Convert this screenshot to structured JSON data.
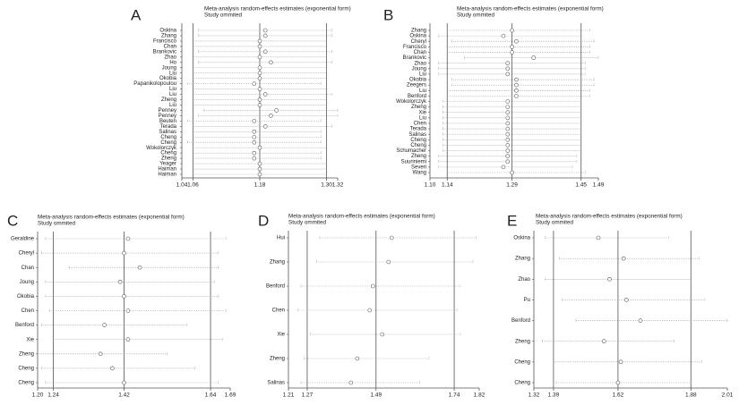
{
  "chart_data": [
    {
      "type": "forest",
      "panel_label": "A",
      "title": "Meta-analysis random-effects estimates (exponential form)",
      "subtitle": "Study ommited",
      "categories": [
        "Oskina",
        "Zhang",
        "Francisco",
        "Chan",
        "Brankovic",
        "Zhao",
        "Ho",
        "Joung",
        "Liu",
        "Okobia",
        "Papanikolopoulou",
        "Liu",
        "Liu",
        "Zheng",
        "Liu",
        "Penney",
        "Penney",
        "Beuten",
        "Terada",
        "Salinas",
        "Cheng",
        "Cheng",
        "Wokolorczyk",
        "Cheng",
        "Zheng",
        "Yeager",
        "Haiman",
        "Haiman"
      ],
      "estimates": [
        1.19,
        1.19,
        1.18,
        1.18,
        1.19,
        1.18,
        1.2,
        1.18,
        1.18,
        1.18,
        1.17,
        1.18,
        1.19,
        1.18,
        1.18,
        1.21,
        1.2,
        1.17,
        1.19,
        1.17,
        1.17,
        1.17,
        1.18,
        1.17,
        1.17,
        1.18,
        1.18,
        1.18
      ],
      "lower": [
        1.07,
        1.07,
        1.06,
        1.06,
        1.07,
        1.06,
        1.07,
        1.06,
        1.06,
        1.06,
        1.05,
        1.06,
        1.06,
        1.06,
        1.06,
        1.08,
        1.07,
        1.05,
        1.06,
        1.06,
        1.06,
        1.05,
        1.06,
        1.06,
        1.06,
        1.06,
        1.06,
        1.06
      ],
      "upper": [
        1.31,
        1.31,
        1.3,
        1.3,
        1.31,
        1.3,
        1.31,
        1.3,
        1.3,
        1.3,
        1.29,
        1.3,
        1.31,
        1.3,
        1.3,
        1.32,
        1.32,
        1.29,
        1.31,
        1.29,
        1.29,
        1.29,
        1.3,
        1.29,
        1.29,
        1.3,
        1.3,
        1.3
      ],
      "xlim": [
        1.04,
        1.32
      ],
      "xticks": [
        1.04,
        1.06,
        1.18,
        {
          "value": 1.3,
          "label": "1.30"
        },
        1.32
      ]
    },
    {
      "type": "forest",
      "panel_label": "B",
      "title": "Meta-analysis random-effects estimates (exponential form)",
      "subtitle": "Study ommited",
      "categories": [
        "Zhang",
        "Oskina",
        "Cheryl",
        "Francisco",
        "Chan",
        "Brankovic",
        "Zhao",
        "Joung",
        "Liu",
        "Okobia",
        "Zeegers",
        "Liu",
        "Benford",
        "Wokolorczyk",
        "Zheng",
        "Xie",
        "Liu",
        "Chen",
        "Terada",
        "Salinas",
        "Cheng",
        "Cheng",
        "Schumacher",
        "Zheng",
        "Suuriniemi",
        "Severi",
        "Wang"
      ],
      "estimates": [
        1.29,
        1.27,
        1.3,
        1.29,
        1.29,
        1.34,
        1.28,
        1.28,
        1.28,
        1.3,
        1.3,
        1.3,
        1.3,
        1.28,
        1.28,
        1.28,
        1.28,
        1.28,
        1.28,
        1.28,
        1.28,
        1.28,
        1.28,
        1.28,
        1.28,
        1.27,
        1.29
      ],
      "lower": [
        1.14,
        1.12,
        1.15,
        1.14,
        1.14,
        1.18,
        1.12,
        1.12,
        1.12,
        1.15,
        1.15,
        1.14,
        1.14,
        1.13,
        1.13,
        1.13,
        1.13,
        1.13,
        1.13,
        1.13,
        1.13,
        1.13,
        1.13,
        1.12,
        1.12,
        1.12,
        1.14
      ],
      "upper": [
        1.47,
        1.45,
        1.48,
        1.47,
        1.47,
        1.49,
        1.46,
        1.46,
        1.46,
        1.48,
        1.48,
        1.47,
        1.47,
        1.45,
        1.45,
        1.45,
        1.45,
        1.45,
        1.45,
        1.45,
        1.45,
        1.45,
        1.45,
        1.44,
        1.44,
        1.43,
        1.46
      ],
      "xlim": [
        1.1,
        1.49
      ],
      "xticks": [
        {
          "value": 1.1,
          "label": "1.10"
        },
        1.14,
        1.29,
        1.45,
        1.49
      ]
    },
    {
      "type": "forest",
      "panel_label": "C",
      "title": "Meta-analysis random-effects estimates (exponential form)",
      "subtitle": "Study ommited",
      "categories": [
        "Geraldine",
        "Cheryl",
        "Chan",
        "Joung",
        "Okobia",
        "Chen",
        "Benford",
        "Xie",
        "Zheng",
        "Cheng",
        "Cheng"
      ],
      "estimates": [
        1.43,
        1.42,
        1.46,
        1.41,
        1.42,
        1.43,
        1.37,
        1.43,
        1.36,
        1.39,
        1.42
      ],
      "lower": [
        1.22,
        1.21,
        1.28,
        1.22,
        1.22,
        1.23,
        1.21,
        1.24,
        1.2,
        1.21,
        1.22
      ],
      "upper": [
        1.68,
        1.66,
        1.66,
        1.65,
        1.66,
        1.68,
        1.58,
        1.67,
        1.53,
        1.6,
        1.66
      ],
      "xlim": [
        1.2,
        1.69
      ],
      "xticks": [
        {
          "value": 1.2,
          "label": "1.20"
        },
        1.24,
        1.42,
        1.64,
        1.69
      ]
    },
    {
      "type": "forest",
      "panel_label": "D",
      "title": "Meta-analysis random-effects estimates (exponential form)",
      "subtitle": "Study ommited",
      "categories": [
        "Hui",
        "Zhang",
        "Benford",
        "Chen",
        "Xie",
        "Zheng",
        "Salinas"
      ],
      "estimates": [
        1.54,
        1.53,
        1.48,
        1.47,
        1.51,
        1.43,
        1.41
      ],
      "lower": [
        1.31,
        1.3,
        1.25,
        1.24,
        1.28,
        1.26,
        1.25
      ],
      "upper": [
        1.81,
        1.8,
        1.76,
        1.75,
        1.76,
        1.66,
        1.63
      ],
      "xlim": [
        1.21,
        1.82
      ],
      "xticks": [
        1.21,
        1.27,
        1.49,
        1.74,
        1.82
      ]
    },
    {
      "type": "forest",
      "panel_label": "E",
      "title": "Meta-analysis random-effects estimates (exponential form)",
      "subtitle": "Study ommited",
      "categories": [
        "Oskina",
        "Zhang",
        "Zhao",
        "Pu",
        "Benford",
        "Zheng",
        "Cheng",
        "Cheng"
      ],
      "estimates": [
        1.55,
        1.64,
        1.59,
        1.65,
        1.7,
        1.57,
        1.63,
        1.62
      ],
      "lower": [
        1.36,
        1.41,
        1.36,
        1.42,
        1.47,
        1.35,
        1.39,
        1.4
      ],
      "upper": [
        1.8,
        1.91,
        1.88,
        1.93,
        2.01,
        1.82,
        1.92,
        1.88
      ],
      "xlim": [
        1.32,
        2.01
      ],
      "xticks": [
        1.32,
        1.39,
        1.62,
        1.88,
        2.01
      ]
    }
  ]
}
